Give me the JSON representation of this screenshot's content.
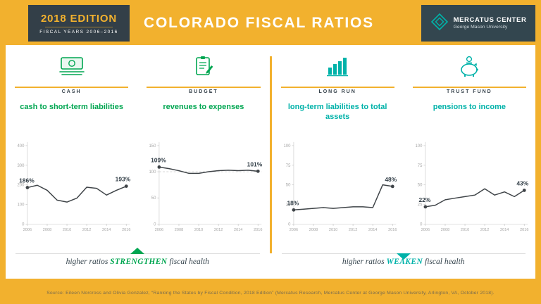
{
  "header": {
    "edition_badge": {
      "line1": "2018 EDITION",
      "line2": "FISCAL YEARS 2006–2016"
    },
    "title": "COLORADO FISCAL RATIOS",
    "logo": {
      "name": "MERCATUS CENTER",
      "subname": "George Mason University"
    }
  },
  "colors": {
    "gold": "#F2B12E",
    "dark_slate": "#333F48",
    "green": "#00A651",
    "teal": "#00B2A9",
    "chart_line": "#3F4448"
  },
  "chart_data": [
    {
      "type": "line",
      "panel_label": "CASH",
      "icon": "cash-money-icon",
      "title": "cash to short-term liabilities",
      "accent": "#00A651",
      "years": [
        2006,
        2007,
        2008,
        2009,
        2010,
        2011,
        2012,
        2013,
        2014,
        2015,
        2016
      ],
      "values": [
        186,
        198,
        172,
        122,
        112,
        132,
        188,
        182,
        148,
        172,
        193
      ],
      "unit": "%",
      "ylim": [
        0,
        400
      ],
      "y_ticks": [
        0,
        100,
        200,
        300,
        400
      ],
      "x_ticks": [
        2006,
        2008,
        2010,
        2012,
        2014,
        2016
      ],
      "start_label": "186%",
      "end_label": "193%",
      "grid": false,
      "legend": "none"
    },
    {
      "type": "line",
      "panel_label": "BUDGET",
      "icon": "budget-clipboard-icon",
      "title": "revenues to expenses",
      "accent": "#00A651",
      "years": [
        2006,
        2007,
        2008,
        2009,
        2010,
        2011,
        2012,
        2013,
        2014,
        2015,
        2016
      ],
      "values": [
        109,
        106,
        102,
        97,
        97,
        100,
        102,
        103,
        102,
        103,
        101
      ],
      "unit": "%",
      "ylim": [
        0,
        150
      ],
      "y_ticks": [
        0,
        50,
        100,
        150
      ],
      "x_ticks": [
        2006,
        2008,
        2010,
        2012,
        2014,
        2016
      ],
      "dashed_at": 100,
      "start_label": "109%",
      "end_label": "101%",
      "grid": false,
      "legend": "none"
    },
    {
      "type": "line",
      "panel_label": "LONG RUN",
      "icon": "bar-chart-icon",
      "title": "long-term liabilities to total assets",
      "accent": "#00B2A9",
      "years": [
        2006,
        2007,
        2008,
        2009,
        2010,
        2011,
        2012,
        2013,
        2014,
        2015,
        2016
      ],
      "values": [
        18,
        19,
        20,
        21,
        20,
        21,
        22,
        22,
        21,
        50,
        48
      ],
      "unit": "%",
      "ylim": [
        0,
        100
      ],
      "y_ticks": [
        0,
        25,
        50,
        75,
        100
      ],
      "x_ticks": [
        2006,
        2008,
        2010,
        2012,
        2014,
        2016
      ],
      "start_label": "18%",
      "end_label": "48%",
      "grid": false,
      "legend": "none"
    },
    {
      "type": "line",
      "panel_label": "TRUST FUND",
      "icon": "piggy-bank-icon",
      "title": "pensions to income",
      "accent": "#00B2A9",
      "years": [
        2006,
        2007,
        2008,
        2009,
        2010,
        2011,
        2012,
        2013,
        2014,
        2015,
        2016
      ],
      "values": [
        22,
        24,
        31,
        33,
        35,
        37,
        45,
        37,
        41,
        35,
        43
      ],
      "unit": "%",
      "ylim": [
        0,
        100
      ],
      "y_ticks": [
        0,
        25,
        50,
        75,
        100
      ],
      "x_ticks": [
        2006,
        2008,
        2010,
        2012,
        2014,
        2016
      ],
      "start_label": "22%",
      "end_label": "43%",
      "grid": false,
      "legend": "none"
    }
  ],
  "footer": {
    "left_caption": {
      "prefix": "higher ratios ",
      "emphasis": "STRENGTHEN",
      "suffix": " fiscal health"
    },
    "right_caption": {
      "prefix": "higher ratios ",
      "emphasis": "WEAKEN",
      "suffix": " fiscal health"
    },
    "source": "Source: Eileen Norcross and Olivia Gonzalez, “Ranking the States by Fiscal Condition, 2018 Edition” (Mercatus Research, Mercatus Center at George Mason University, Arlington, VA, October 2018)."
  }
}
